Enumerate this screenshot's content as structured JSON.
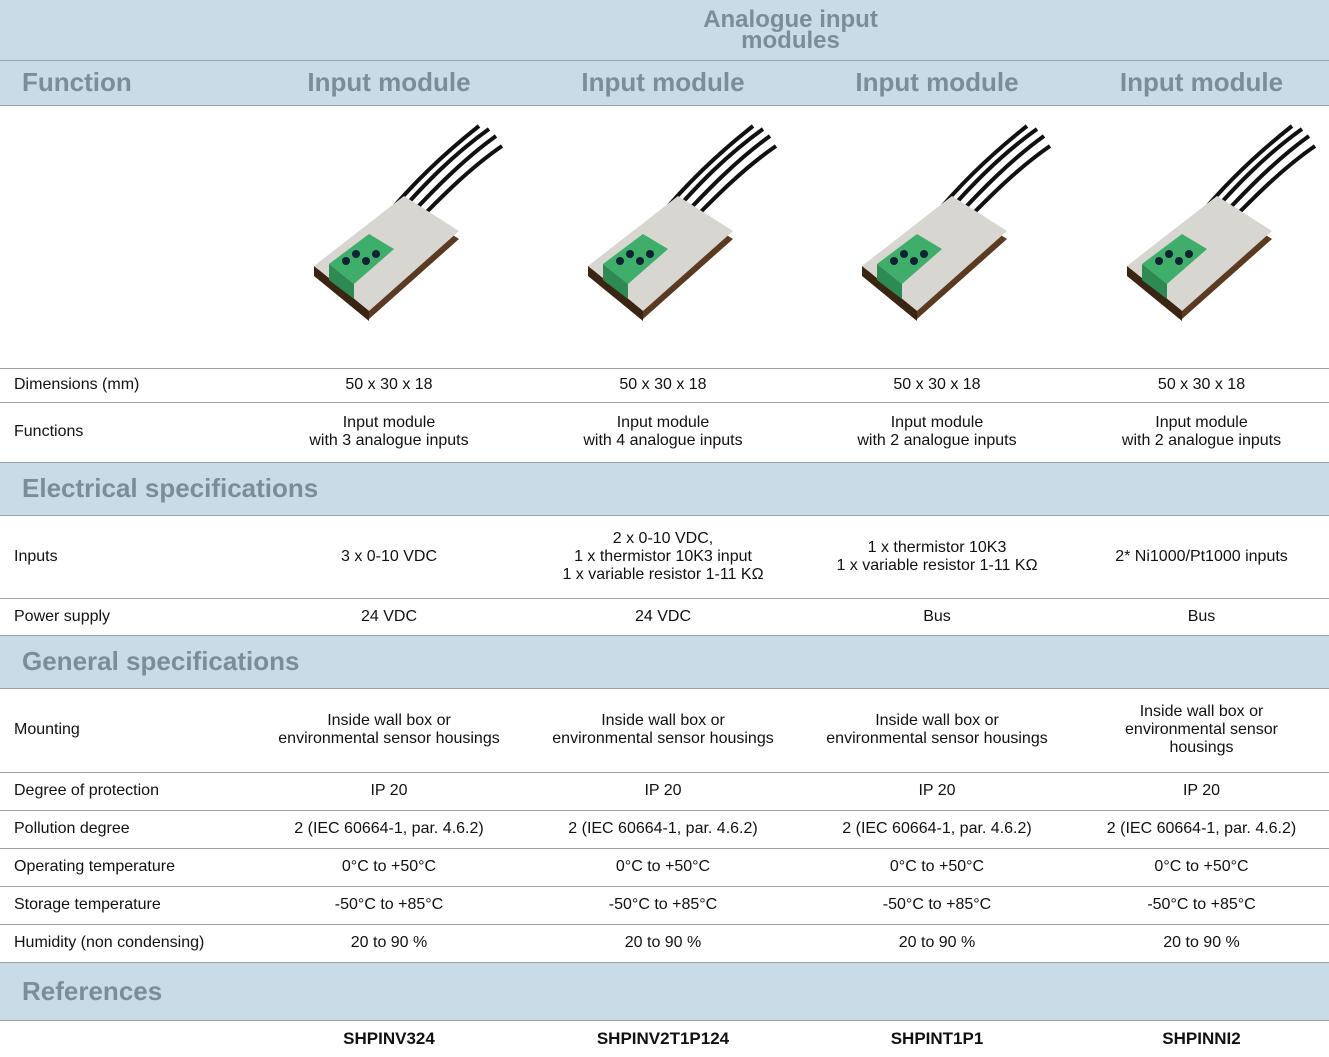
{
  "table": {
    "group_header": [
      "Analogue input",
      "modules"
    ],
    "columns": [
      "Function",
      "Input module",
      "Input module",
      "Input module",
      "Input module"
    ],
    "rows": [
      {
        "label": "Dimensions (mm)",
        "cells": [
          [
            "50 x 30 x 18"
          ],
          [
            "50 x 30 x 18"
          ],
          [
            "50 x 30 x 18"
          ],
          [
            "50 x 30 x 18"
          ]
        ]
      },
      {
        "label": "Functions",
        "cells": [
          [
            "Input module",
            "with 3 analogue inputs"
          ],
          [
            "Input module",
            "with 4 analogue inputs"
          ],
          [
            "Input module",
            "with 2 analogue inputs"
          ],
          [
            "Input module",
            "with 2 analogue inputs"
          ]
        ]
      },
      {
        "section": "Electrical specifications"
      },
      {
        "label": "Inputs",
        "cells": [
          [
            "3 x 0-10 VDC"
          ],
          [
            "2 x 0-10 VDC,",
            "1 x thermistor 10K3 input",
            "1 x variable resistor 1-11 KΩ"
          ],
          [
            "1 x thermistor 10K3",
            "1 x variable resistor 1-11 KΩ"
          ],
          [
            "2* Ni1000/Pt1000 inputs"
          ]
        ]
      },
      {
        "label": "Power supply",
        "cells": [
          [
            "24 VDC"
          ],
          [
            "24 VDC"
          ],
          [
            "Bus"
          ],
          [
            "Bus"
          ]
        ]
      },
      {
        "section": "General specifications"
      },
      {
        "label": "Mounting",
        "cells": [
          [
            "Inside wall box or",
            "environmental sensor housings"
          ],
          [
            "Inside wall box or",
            "environmental sensor housings"
          ],
          [
            "Inside wall box or",
            "environmental sensor housings"
          ],
          [
            "Inside wall box or",
            "environmental sensor",
            "housings"
          ]
        ]
      },
      {
        "label": "Degree of protection",
        "cells": [
          [
            "IP 20"
          ],
          [
            "IP 20"
          ],
          [
            "IP 20"
          ],
          [
            "IP 20"
          ]
        ]
      },
      {
        "label": "Pollution degree",
        "cells": [
          [
            "2 (IEC 60664-1, par. 4.6.2)"
          ],
          [
            "2 (IEC 60664-1, par. 4.6.2)"
          ],
          [
            "2 (IEC 60664-1, par. 4.6.2)"
          ],
          [
            "2 (IEC 60664-1, par. 4.6.2)"
          ]
        ]
      },
      {
        "label": "Operating temperature",
        "cells": [
          [
            "0°C to +50°C"
          ],
          [
            "0°C to +50°C"
          ],
          [
            "0°C to +50°C"
          ],
          [
            "0°C to +50°C"
          ]
        ]
      },
      {
        "label": "Storage temperature",
        "cells": [
          [
            "-50°C to +85°C"
          ],
          [
            "-50°C to +85°C"
          ],
          [
            "-50°C to +85°C"
          ],
          [
            "-50°C to +85°C"
          ]
        ]
      },
      {
        "label": "Humidity (non condensing)",
        "cells": [
          [
            "20 to 90 %"
          ],
          [
            "20 to 90 %"
          ],
          [
            "20 to 90 %"
          ],
          [
            "20 to 90 %"
          ]
        ]
      },
      {
        "section": "References"
      },
      {
        "cells": [
          [
            "SHPINV324"
          ],
          [
            "SHPINV2T1P124"
          ],
          [
            "SHPINT1P1"
          ],
          [
            "SHPINNI2"
          ]
        ],
        "bold": true
      }
    ]
  }
}
